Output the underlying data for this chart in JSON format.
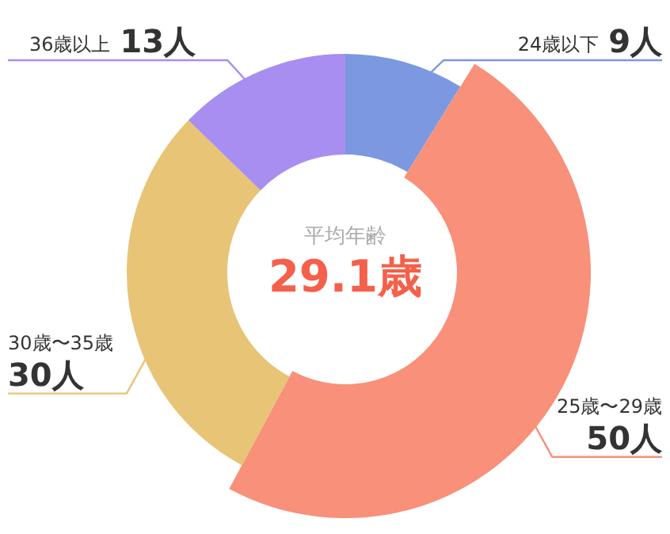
{
  "chart_data": {
    "type": "donut",
    "title": "平均年齢",
    "subtitle": "29.1歳",
    "categories": [
      "24歳以下",
      "25歳〜29歳",
      "30歳〜35歳",
      "36歳以上"
    ],
    "values": [
      9,
      50,
      30,
      13
    ],
    "value_labels": [
      "9人",
      "50人",
      "30人",
      "13人"
    ],
    "colors": [
      "#7b98e0",
      "#f8907a",
      "#e8c476",
      "#a88ef0"
    ],
    "legend": false
  }
}
